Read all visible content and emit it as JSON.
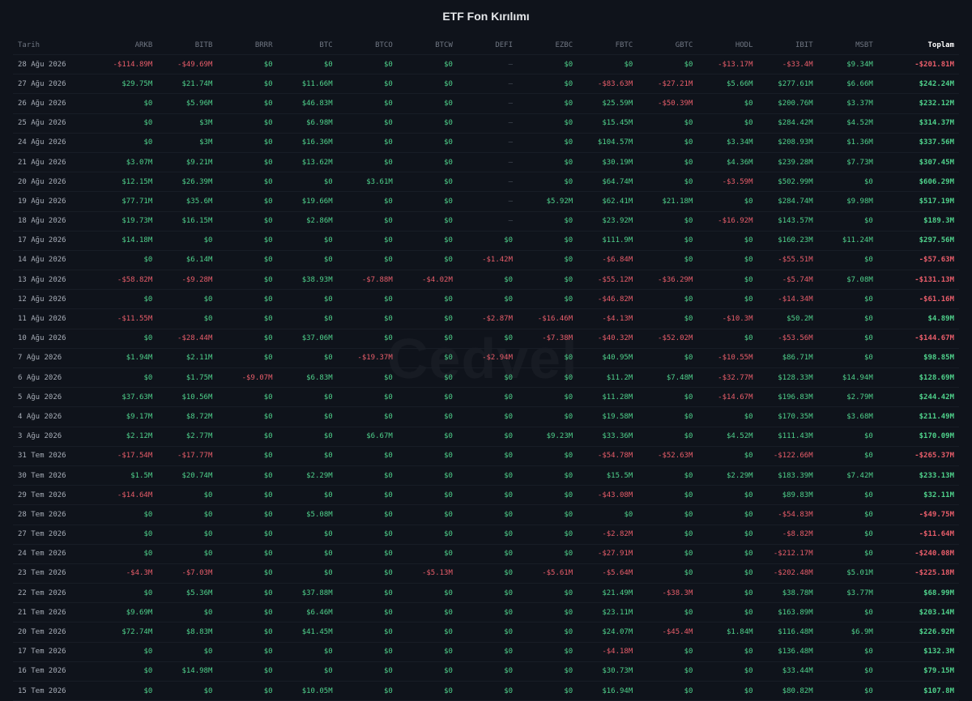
{
  "title": "ETF Fon Kırılımı",
  "watermark": "Cedvel",
  "colors": {
    "positive": "#4fd18b",
    "negative": "#e85d6a",
    "background": "#0f131b"
  },
  "headers": [
    "Tarih",
    "ARKB",
    "BITB",
    "BRRR",
    "BTC",
    "BTCO",
    "BTCW",
    "DEFI",
    "EZBC",
    "FBTC",
    "GBTC",
    "HODL",
    "IBIT",
    "MSBT",
    "Toplam"
  ],
  "rows": [
    [
      "28 Ağu 2026",
      "-$114.89M",
      "-$49.69M",
      "$0",
      "$0",
      "$0",
      "$0",
      "—",
      "$0",
      "$0",
      "$0",
      "-$13.17M",
      "-$33.4M",
      "$9.34M",
      "-$201.81M"
    ],
    [
      "27 Ağu 2026",
      "$29.75M",
      "$21.74M",
      "$0",
      "$11.66M",
      "$0",
      "$0",
      "—",
      "$0",
      "-$83.63M",
      "-$27.21M",
      "$5.66M",
      "$277.61M",
      "$6.66M",
      "$242.24M"
    ],
    [
      "26 Ağu 2026",
      "$0",
      "$5.96M",
      "$0",
      "$46.83M",
      "$0",
      "$0",
      "—",
      "$0",
      "$25.59M",
      "-$50.39M",
      "$0",
      "$200.76M",
      "$3.37M",
      "$232.12M"
    ],
    [
      "25 Ağu 2026",
      "$0",
      "$3M",
      "$0",
      "$6.98M",
      "$0",
      "$0",
      "—",
      "$0",
      "$15.45M",
      "$0",
      "$0",
      "$284.42M",
      "$4.52M",
      "$314.37M"
    ],
    [
      "24 Ağu 2026",
      "$0",
      "$3M",
      "$0",
      "$16.36M",
      "$0",
      "$0",
      "—",
      "$0",
      "$104.57M",
      "$0",
      "$3.34M",
      "$208.93M",
      "$1.36M",
      "$337.56M"
    ],
    [
      "21 Ağu 2026",
      "$3.07M",
      "$9.21M",
      "$0",
      "$13.62M",
      "$0",
      "$0",
      "—",
      "$0",
      "$30.19M",
      "$0",
      "$4.36M",
      "$239.28M",
      "$7.73M",
      "$307.45M"
    ],
    [
      "20 Ağu 2026",
      "$12.15M",
      "$26.39M",
      "$0",
      "$0",
      "$3.61M",
      "$0",
      "—",
      "$0",
      "$64.74M",
      "$0",
      "-$3.59M",
      "$502.99M",
      "$0",
      "$606.29M"
    ],
    [
      "19 Ağu 2026",
      "$77.71M",
      "$35.6M",
      "$0",
      "$19.66M",
      "$0",
      "$0",
      "—",
      "$5.92M",
      "$62.41M",
      "$21.18M",
      "$0",
      "$284.74M",
      "$9.98M",
      "$517.19M"
    ],
    [
      "18 Ağu 2026",
      "$19.73M",
      "$16.15M",
      "$0",
      "$2.86M",
      "$0",
      "$0",
      "—",
      "$0",
      "$23.92M",
      "$0",
      "-$16.92M",
      "$143.57M",
      "$0",
      "$189.3M"
    ],
    [
      "17 Ağu 2026",
      "$14.18M",
      "$0",
      "$0",
      "$0",
      "$0",
      "$0",
      "$0",
      "$0",
      "$111.9M",
      "$0",
      "$0",
      "$160.23M",
      "$11.24M",
      "$297.56M"
    ],
    [
      "14 Ağu 2026",
      "$0",
      "$6.14M",
      "$0",
      "$0",
      "$0",
      "$0",
      "-$1.42M",
      "$0",
      "-$6.84M",
      "$0",
      "$0",
      "-$55.51M",
      "$0",
      "-$57.63M"
    ],
    [
      "13 Ağu 2026",
      "-$58.82M",
      "-$9.28M",
      "$0",
      "$38.93M",
      "-$7.88M",
      "-$4.02M",
      "$0",
      "$0",
      "-$55.12M",
      "-$36.29M",
      "$0",
      "-$5.74M",
      "$7.08M",
      "-$131.13M"
    ],
    [
      "12 Ağu 2026",
      "$0",
      "$0",
      "$0",
      "$0",
      "$0",
      "$0",
      "$0",
      "$0",
      "-$46.82M",
      "$0",
      "$0",
      "-$14.34M",
      "$0",
      "-$61.16M"
    ],
    [
      "11 Ağu 2026",
      "-$11.55M",
      "$0",
      "$0",
      "$0",
      "$0",
      "$0",
      "-$2.87M",
      "-$16.46M",
      "-$4.13M",
      "$0",
      "-$10.3M",
      "$50.2M",
      "$0",
      "$4.89M"
    ],
    [
      "10 Ağu 2026",
      "$0",
      "-$28.44M",
      "$0",
      "$37.06M",
      "$0",
      "$0",
      "$0",
      "-$7.38M",
      "-$40.32M",
      "-$52.02M",
      "$0",
      "-$53.56M",
      "$0",
      "-$144.67M"
    ],
    [
      "7 Ağu 2026",
      "$1.94M",
      "$2.11M",
      "$0",
      "$0",
      "-$19.37M",
      "$0",
      "-$2.94M",
      "$0",
      "$40.95M",
      "$0",
      "-$10.55M",
      "$86.71M",
      "$0",
      "$98.85M"
    ],
    [
      "6 Ağu 2026",
      "$0",
      "$1.75M",
      "-$9.07M",
      "$6.83M",
      "$0",
      "$0",
      "$0",
      "$0",
      "$11.2M",
      "$7.48M",
      "-$32.77M",
      "$128.33M",
      "$14.94M",
      "$128.69M"
    ],
    [
      "5 Ağu 2026",
      "$37.63M",
      "$10.56M",
      "$0",
      "$0",
      "$0",
      "$0",
      "$0",
      "$0",
      "$11.28M",
      "$0",
      "-$14.67M",
      "$196.83M",
      "$2.79M",
      "$244.42M"
    ],
    [
      "4 Ağu 2026",
      "$9.17M",
      "$8.72M",
      "$0",
      "$0",
      "$0",
      "$0",
      "$0",
      "$0",
      "$19.58M",
      "$0",
      "$0",
      "$170.35M",
      "$3.68M",
      "$211.49M"
    ],
    [
      "3 Ağu 2026",
      "$2.12M",
      "$2.77M",
      "$0",
      "$0",
      "$6.67M",
      "$0",
      "$0",
      "$9.23M",
      "$33.36M",
      "$0",
      "$4.52M",
      "$111.43M",
      "$0",
      "$170.09M"
    ],
    [
      "31 Tem 2026",
      "-$17.54M",
      "-$17.77M",
      "$0",
      "$0",
      "$0",
      "$0",
      "$0",
      "$0",
      "-$54.78M",
      "-$52.63M",
      "$0",
      "-$122.66M",
      "$0",
      "-$265.37M"
    ],
    [
      "30 Tem 2026",
      "$1.5M",
      "$20.74M",
      "$0",
      "$2.29M",
      "$0",
      "$0",
      "$0",
      "$0",
      "$15.5M",
      "$0",
      "$2.29M",
      "$183.39M",
      "$7.42M",
      "$233.13M"
    ],
    [
      "29 Tem 2026",
      "-$14.64M",
      "$0",
      "$0",
      "$0",
      "$0",
      "$0",
      "$0",
      "$0",
      "-$43.08M",
      "$0",
      "$0",
      "$89.83M",
      "$0",
      "$32.11M"
    ],
    [
      "28 Tem 2026",
      "$0",
      "$0",
      "$0",
      "$5.08M",
      "$0",
      "$0",
      "$0",
      "$0",
      "$0",
      "$0",
      "$0",
      "-$54.83M",
      "$0",
      "-$49.75M"
    ],
    [
      "27 Tem 2026",
      "$0",
      "$0",
      "$0",
      "$0",
      "$0",
      "$0",
      "$0",
      "$0",
      "-$2.82M",
      "$0",
      "$0",
      "-$8.82M",
      "$0",
      "-$11.64M"
    ],
    [
      "24 Tem 2026",
      "$0",
      "$0",
      "$0",
      "$0",
      "$0",
      "$0",
      "$0",
      "$0",
      "-$27.91M",
      "$0",
      "$0",
      "-$212.17M",
      "$0",
      "-$240.08M"
    ],
    [
      "23 Tem 2026",
      "-$4.3M",
      "-$7.03M",
      "$0",
      "$0",
      "$0",
      "-$5.13M",
      "$0",
      "-$5.61M",
      "-$5.64M",
      "$0",
      "$0",
      "-$202.48M",
      "$5.01M",
      "-$225.18M"
    ],
    [
      "22 Tem 2026",
      "$0",
      "$5.36M",
      "$0",
      "$37.88M",
      "$0",
      "$0",
      "$0",
      "$0",
      "$21.49M",
      "-$38.3M",
      "$0",
      "$38.78M",
      "$3.77M",
      "$68.99M"
    ],
    [
      "21 Tem 2026",
      "$9.69M",
      "$0",
      "$0",
      "$6.46M",
      "$0",
      "$0",
      "$0",
      "$0",
      "$23.11M",
      "$0",
      "$0",
      "$163.89M",
      "$0",
      "$203.14M"
    ],
    [
      "20 Tem 2026",
      "$72.74M",
      "$8.83M",
      "$0",
      "$41.45M",
      "$0",
      "$0",
      "$0",
      "$0",
      "$24.07M",
      "-$45.4M",
      "$1.84M",
      "$116.48M",
      "$6.9M",
      "$226.92M"
    ],
    [
      "17 Tem 2026",
      "$0",
      "$0",
      "$0",
      "$0",
      "$0",
      "$0",
      "$0",
      "$0",
      "-$4.18M",
      "$0",
      "$0",
      "$136.48M",
      "$0",
      "$132.3M"
    ],
    [
      "16 Tem 2026",
      "$0",
      "$14.98M",
      "$0",
      "$0",
      "$0",
      "$0",
      "$0",
      "$0",
      "$30.73M",
      "$0",
      "$0",
      "$33.44M",
      "$0",
      "$79.15M"
    ],
    [
      "15 Tem 2026",
      "$0",
      "$0",
      "$0",
      "$10.05M",
      "$0",
      "$0",
      "$0",
      "$0",
      "$16.94M",
      "$0",
      "$0",
      "$80.82M",
      "$0",
      "$107.8M"
    ]
  ]
}
